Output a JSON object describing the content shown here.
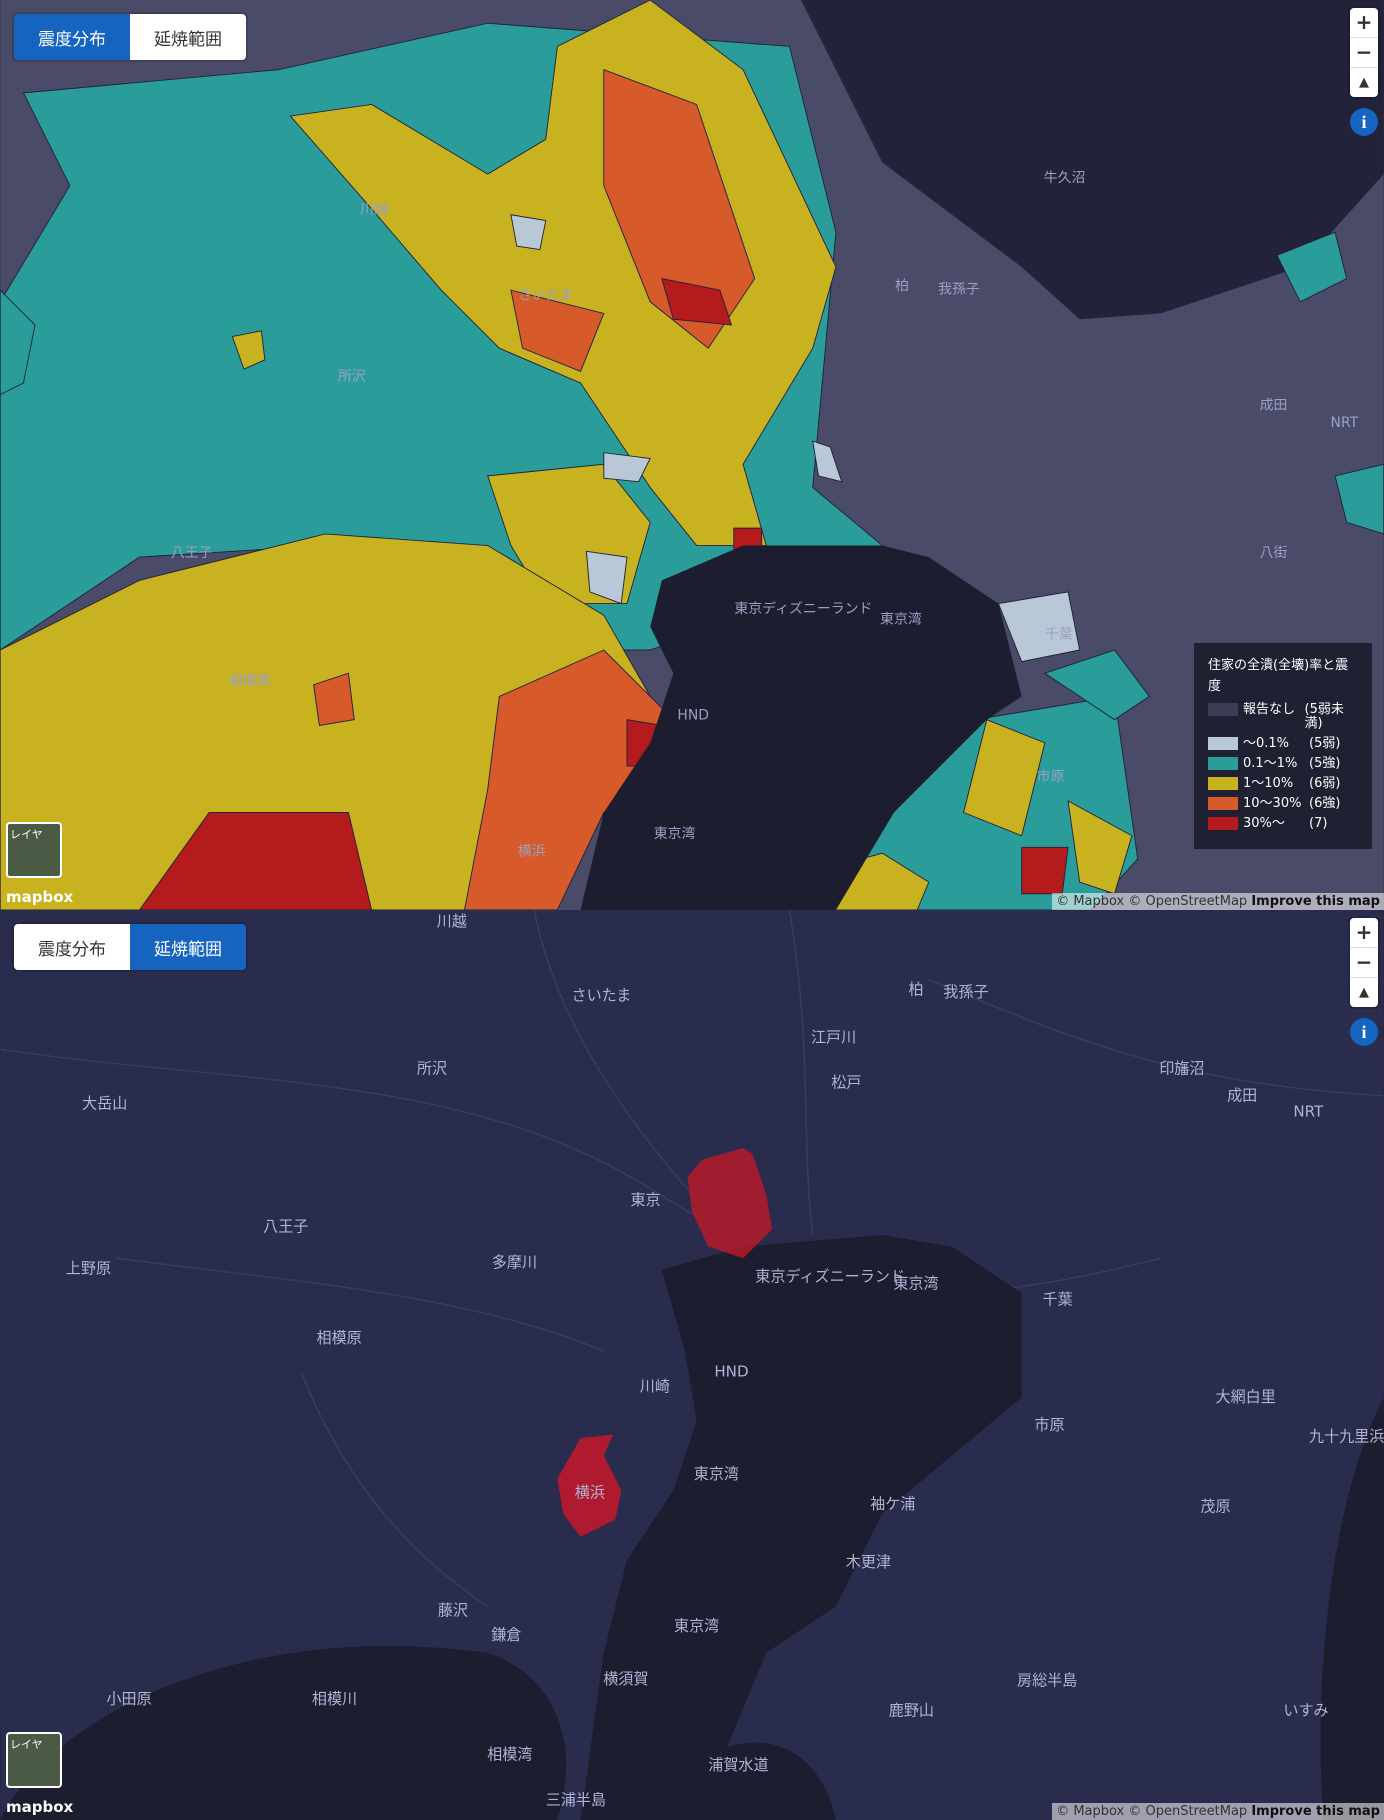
{
  "panels": [
    {
      "buttons": [
        "震度分布",
        "延焼範囲"
      ],
      "active_button": 0,
      "zoom": [
        "+",
        "−"
      ],
      "info": "i",
      "layers": "レイヤ",
      "logo": "mapbox",
      "attribution": "© Mapbox © OpenStreetMap",
      "improve": "Improve this map",
      "legend": {
        "title": "住家の全潰(全壊)率と震度",
        "items": [
          {
            "label": "報告なし",
            "intensity": "(5弱未満)",
            "color": "#3c3d55"
          },
          {
            "label": "〜0.1%",
            "intensity": "(5弱)",
            "color": "#b9c8d6"
          },
          {
            "label": "0.1〜1%",
            "intensity": "(5強)",
            "color": "#2a9d9a"
          },
          {
            "label": "1〜10%",
            "intensity": "(6弱)",
            "color": "#c9b21f"
          },
          {
            "label": "10〜30%",
            "intensity": "(6強)",
            "color": "#d65a2a"
          },
          {
            "label": "30%〜",
            "intensity": "(7)",
            "color": "#b51a1d"
          }
        ]
      },
      "places": [
        "さいたま",
        "所沢",
        "八王子",
        "相模原",
        "東京ディズニーランド",
        "東京湾",
        "千葉",
        "柏",
        "我孫子",
        "成田",
        "NRT",
        "HND",
        "横浜",
        "市原",
        "東京湾",
        "牛久沼",
        "八街",
        "川越"
      ]
    },
    {
      "buttons": [
        "震度分布",
        "延焼範囲"
      ],
      "active_button": 1,
      "zoom": [
        "+",
        "−"
      ],
      "info": "i",
      "layers": "レイヤ",
      "logo": "mapbox",
      "attribution": "© Mapbox © OpenStreetMap",
      "improve": "Improve this map",
      "places": [
        "川越",
        "さいたま",
        "柏",
        "我孫子",
        "所沢",
        "松戸",
        "東京",
        "八王子",
        "上野原",
        "相模原",
        "東京ディズニーランド",
        "東京湾",
        "千葉",
        "HND",
        "川崎",
        "横浜",
        "東京湾",
        "市原",
        "大網白里",
        "九十九里浜",
        "袖ケ浦",
        "木更津",
        "藤沢",
        "鎌倉",
        "東京湾",
        "横須賀",
        "小田原",
        "相模川",
        "相模湾",
        "浦賀水道",
        "三浦半島",
        "房総半島",
        "茂原",
        "鹿野山",
        "いすみ",
        "成田",
        "NRT",
        "多摩川",
        "江戸川",
        "印旛沼",
        "大岳山"
      ]
    }
  ]
}
